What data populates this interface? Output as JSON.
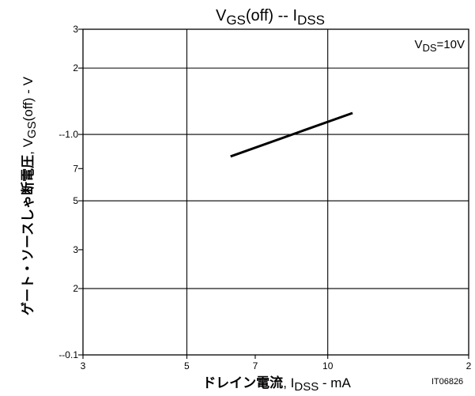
{
  "chart_data": {
    "type": "line",
    "title": {
      "main": "V",
      "main_sub": "GS",
      "main_rest": "(off)  --  I",
      "rest_sub": "DSS"
    },
    "condition": {
      "prefix": "V",
      "sub": "DS",
      "value": "=10V"
    },
    "x_axis": {
      "scale": "log",
      "range": [
        3,
        20
      ],
      "label": {
        "jp": "ドレイン電流",
        "sep": ", I",
        "sub": "DSS",
        "unit": "  -  mA"
      },
      "ticks": [
        {
          "value": 3,
          "label": "3"
        },
        {
          "value": 5,
          "label": "5"
        },
        {
          "value": 7,
          "label": "7"
        },
        {
          "value": 10,
          "label": "10"
        },
        {
          "value": 20,
          "label": "2"
        }
      ],
      "gridlines": [
        5,
        10,
        20
      ]
    },
    "y_axis": {
      "scale": "log",
      "range": [
        0.1,
        3
      ],
      "label": {
        "jp": "ゲート・ソースしゃ断電圧",
        "sep": ", V",
        "sub": "GS",
        "rest": "(off)  -  V"
      },
      "ticks": [
        {
          "value": 3,
          "label": "3"
        },
        {
          "value": 2,
          "label": "2"
        },
        {
          "value": 1.0,
          "label": "--1.0"
        },
        {
          "value": 0.7,
          "label": "7"
        },
        {
          "value": 0.5,
          "label": "5"
        },
        {
          "value": 0.3,
          "label": "3"
        },
        {
          "value": 0.2,
          "label": "2"
        },
        {
          "value": 0.1,
          "label": "--0.1"
        }
      ],
      "gridlines": [
        2,
        1.0,
        0.5,
        0.2
      ]
    },
    "series": [
      {
        "x": [
          6.2,
          11.3
        ],
        "y": [
          0.795,
          1.25
        ]
      }
    ],
    "grid": true,
    "figure_id": "IT06826",
    "colors": {
      "line": "#000000",
      "grid": "#000000",
      "text": "#000000"
    }
  }
}
